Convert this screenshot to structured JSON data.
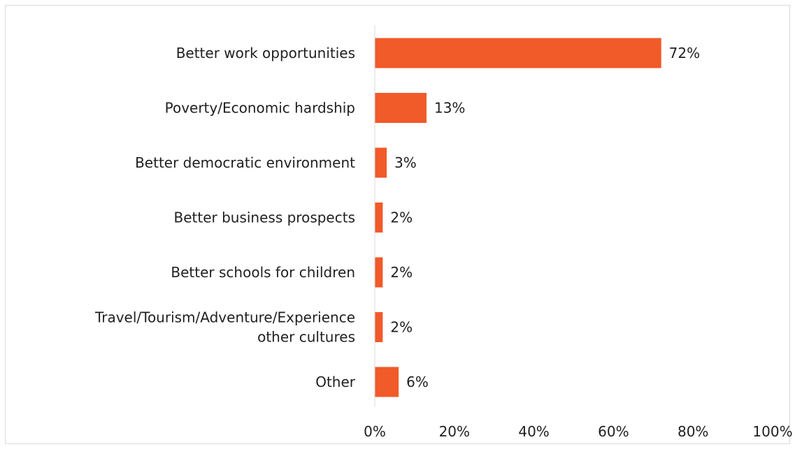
{
  "chart_data": {
    "type": "bar",
    "orientation": "horizontal",
    "categories": [
      [
        "Better work opportunities"
      ],
      [
        "Poverty/Economic hardship"
      ],
      [
        "Better democratic environment"
      ],
      [
        "Better business prospects"
      ],
      [
        "Better schools for children"
      ],
      [
        "Travel/Tourism/Adventure/Experience",
        "other cultures"
      ],
      [
        "Other"
      ]
    ],
    "values": [
      72,
      13,
      3,
      2,
      2,
      2,
      6
    ],
    "value_labels": [
      "72%",
      "13%",
      "3%",
      "2%",
      "2%",
      "2%",
      "6%"
    ],
    "x_ticks": [
      "0%",
      "20%",
      "40%",
      "60%",
      "80%",
      "100%"
    ],
    "xlim": [
      0,
      100
    ],
    "bar_color": "#f15a29",
    "grid": false,
    "legend": "none",
    "title": "",
    "xlabel": "",
    "ylabel": ""
  }
}
